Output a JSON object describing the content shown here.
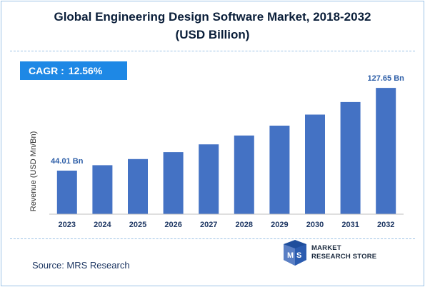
{
  "header": {
    "title_line1": "Global Engineering Design Software Market, 2018-2032",
    "title_line2": "(USD Billion)"
  },
  "cagr": {
    "label": "CAGR :",
    "value": "12.56%"
  },
  "colors": {
    "bar": "#4472c4",
    "cagr_box": "#1e88e5",
    "title": "#0b1f3a",
    "annotation": "#2e5fa8",
    "tick": "#1f3864"
  },
  "chart_data": {
    "type": "bar",
    "title": "Global Engineering Design Software Market, 2018-2032 (USD Billion)",
    "xlabel": "",
    "ylabel": "Revenue (USD Mn/Bn)",
    "categories": [
      "2023",
      "2024",
      "2025",
      "2026",
      "2027",
      "2028",
      "2029",
      "2030",
      "2031",
      "2032"
    ],
    "values": [
      44.01,
      49.5,
      55.7,
      62.7,
      70.6,
      79.5,
      89.5,
      100.7,
      113.4,
      127.65
    ],
    "ylim": [
      0,
      140
    ],
    "grid": false,
    "annotations": [
      {
        "category": "2023",
        "text": "44.01 Bn"
      },
      {
        "category": "2032",
        "text": "127.65 Bn"
      }
    ]
  },
  "source": {
    "text": "Source: MRS Research"
  },
  "logo": {
    "line1": "MARKET",
    "line2": "RESEARCH STORE",
    "icon": "mrs-logo-icon"
  }
}
